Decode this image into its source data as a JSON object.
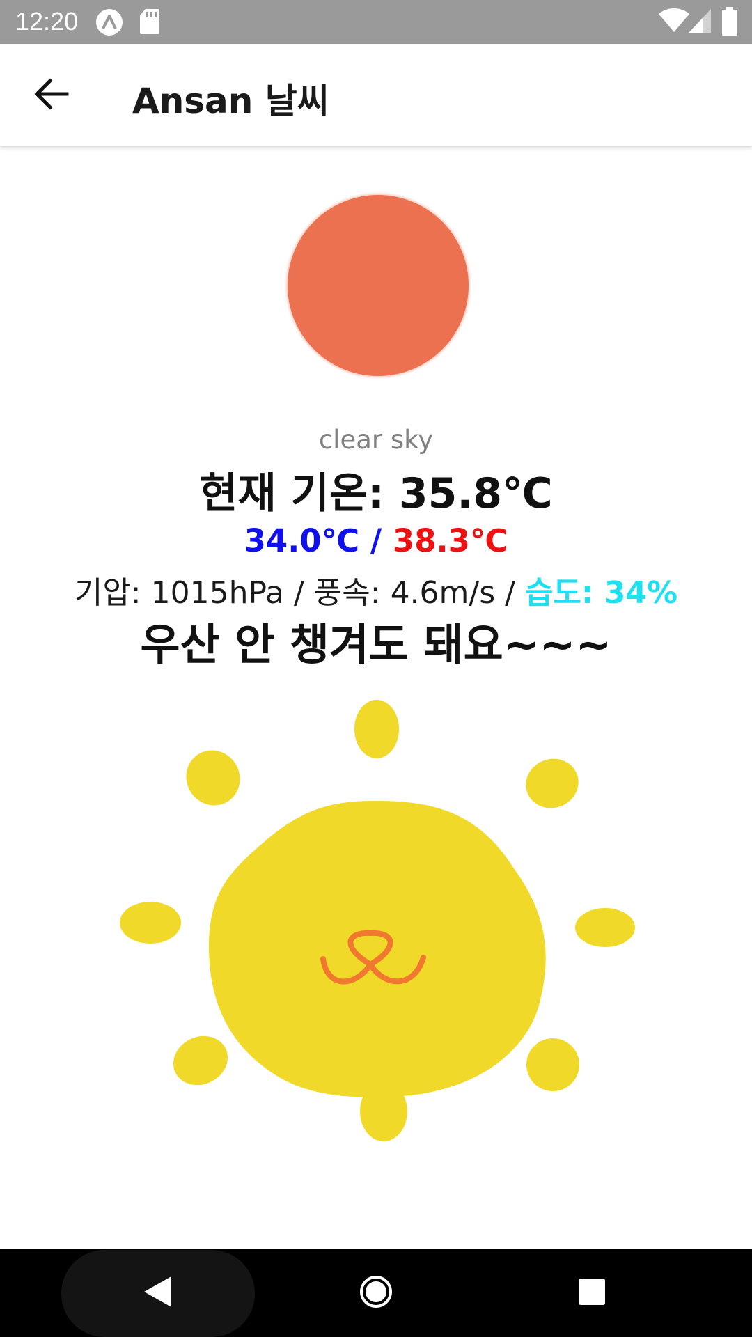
{
  "status_bar": {
    "time": "12:20",
    "icons": [
      "app-notification-icon",
      "sd-card-icon",
      "wifi-icon",
      "cellular-signal-icon",
      "battery-icon"
    ]
  },
  "app_bar": {
    "back_icon": "arrow-back-icon",
    "title": "Ansan 날씨"
  },
  "weather": {
    "icon_color": "#ec7150",
    "description": "clear sky",
    "current_temp": "현재 기온: 35.8℃",
    "min_temp": "34.0℃",
    "minmax_separator": " / ",
    "max_temp": "38.3℃",
    "details_prefix": "기압: 1015hPa / 풍속: 4.6m/s / ",
    "humidity": "습도: 34%",
    "umbrella_message": "우산 안 챙겨도 돼요~~~",
    "colors": {
      "min": "#1010ee",
      "max": "#ee1111",
      "humidity": "#1ee0f0",
      "sun": "#f0d928",
      "mouth": "#f07830"
    }
  },
  "nav_bar": {
    "buttons": [
      "back-triangle-icon",
      "home-circle-icon",
      "recents-square-icon"
    ]
  }
}
